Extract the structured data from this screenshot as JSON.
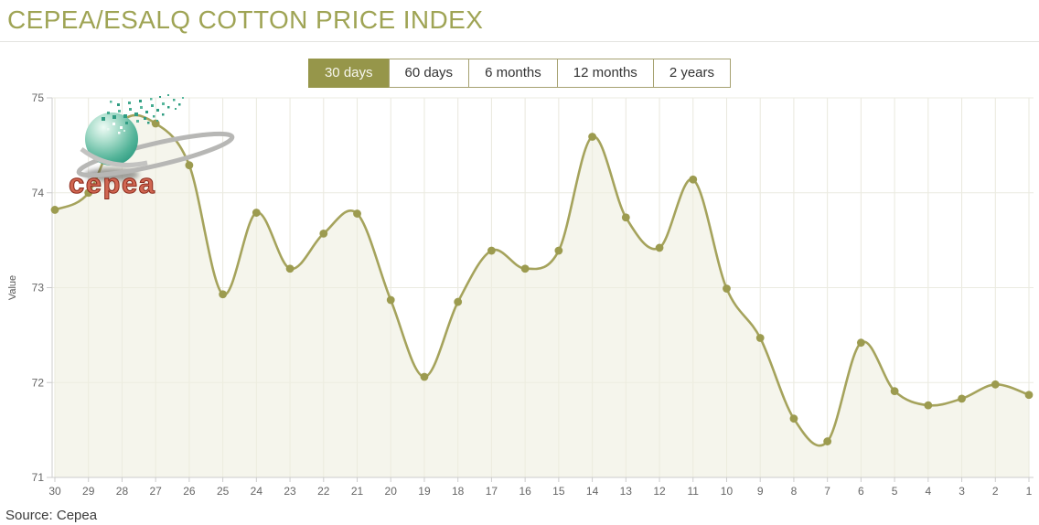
{
  "header": {
    "title": "CEPEA/ESALQ COTTON PRICE INDEX"
  },
  "toolbar": {
    "buttons": [
      {
        "label": "30 days",
        "active": true
      },
      {
        "label": "60 days",
        "active": false
      },
      {
        "label": "6 months",
        "active": false
      },
      {
        "label": "12 months",
        "active": false
      },
      {
        "label": "2 years",
        "active": false
      }
    ]
  },
  "logo": {
    "wordmark": "cepea"
  },
  "footer": {
    "source": "Source: Cepea"
  },
  "colors": {
    "accent": "#96964a",
    "title": "#9fa455",
    "line": "#a5a35c",
    "marker": "#9c9b4f",
    "area_fill": "#eeeedf",
    "axis": "#cccccc",
    "tick_text": "#666666"
  },
  "chart_data": {
    "type": "area",
    "title": "CEPEA/ESALQ COTTON PRICE INDEX",
    "xlabel": "",
    "ylabel": "Value",
    "x": [
      30,
      29,
      28,
      27,
      26,
      25,
      24,
      23,
      22,
      21,
      20,
      19,
      18,
      17,
      16,
      15,
      14,
      13,
      12,
      11,
      10,
      9,
      8,
      7,
      6,
      5,
      4,
      3,
      2,
      1
    ],
    "values": [
      73.82,
      74.0,
      74.75,
      74.73,
      74.29,
      72.93,
      73.79,
      73.2,
      73.57,
      73.78,
      72.87,
      72.06,
      72.85,
      73.39,
      73.2,
      73.39,
      74.59,
      73.74,
      73.42,
      74.14,
      72.99,
      72.47,
      71.62,
      71.38,
      72.42,
      71.91,
      71.76,
      71.83,
      71.98,
      71.87
    ],
    "ylim": [
      71,
      75
    ],
    "yticks": [
      71,
      72,
      73,
      74,
      75
    ],
    "grid": true,
    "legend": "none",
    "selected_range": "30 days"
  }
}
